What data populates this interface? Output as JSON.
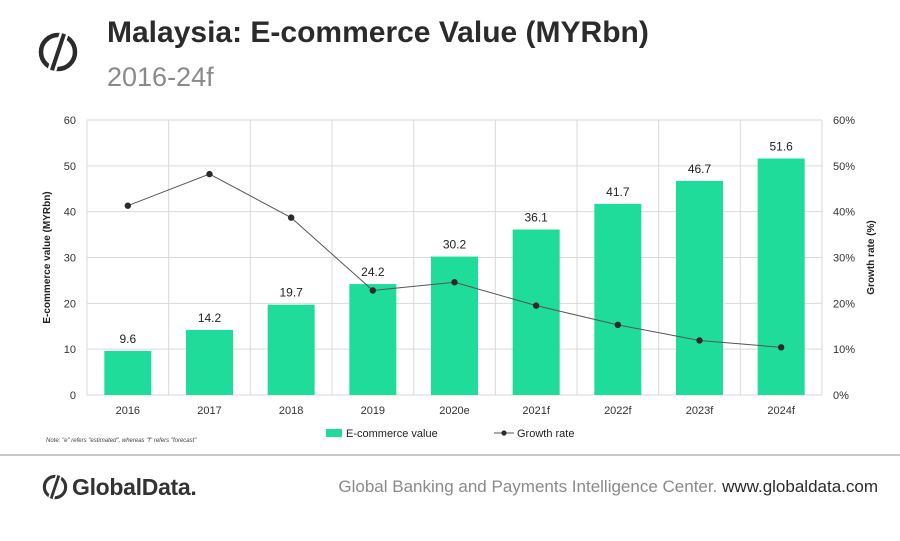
{
  "header": {
    "title": "Malaysia: E-commerce Value (MYRbn)",
    "subtitle": "2016-24f"
  },
  "note": "Note: \"e\" refers \"estimated\", whereas \"f\" refers \"forecast\"",
  "footer": {
    "brand": "GlobalData.",
    "center_text": "Global Banking and Payments Intelligence Center.",
    "url": "www.globaldata.com"
  },
  "colors": {
    "bar": "#1fdc9a",
    "line": "#555555",
    "marker": "#2b2b2b",
    "grid": "#d9d9d9"
  },
  "chart_data": {
    "type": "bar",
    "categories": [
      "2016",
      "2017",
      "2018",
      "2019",
      "2020e",
      "2021f",
      "2022f",
      "2023f",
      "2024f"
    ],
    "series": [
      {
        "name": "E-commerce value",
        "type": "bar",
        "axis": "left",
        "values": [
          9.6,
          14.2,
          19.7,
          24.2,
          30.2,
          36.1,
          41.7,
          46.7,
          51.6
        ]
      },
      {
        "name": "Growth rate",
        "type": "line",
        "axis": "right",
        "values": [
          41.3,
          48.2,
          38.7,
          22.8,
          24.6,
          19.5,
          15.3,
          11.9,
          10.4
        ]
      }
    ],
    "ylabel": "E-commerce value (MYRbn)",
    "y2label": "Growth rate (%)",
    "ylim": [
      0,
      60
    ],
    "y_ticks": [
      "0",
      "10",
      "20",
      "30",
      "40",
      "50",
      "60"
    ],
    "y2lim": [
      0,
      60
    ],
    "y2_ticks": [
      "0%",
      "10%",
      "20%",
      "30%",
      "40%",
      "50%",
      "60%"
    ],
    "data_labels": [
      "9.6",
      "14.2",
      "19.7",
      "24.2",
      "30.2",
      "36.1",
      "41.7",
      "46.7",
      "51.6"
    ],
    "grid": true,
    "legend_position": "bottom"
  }
}
